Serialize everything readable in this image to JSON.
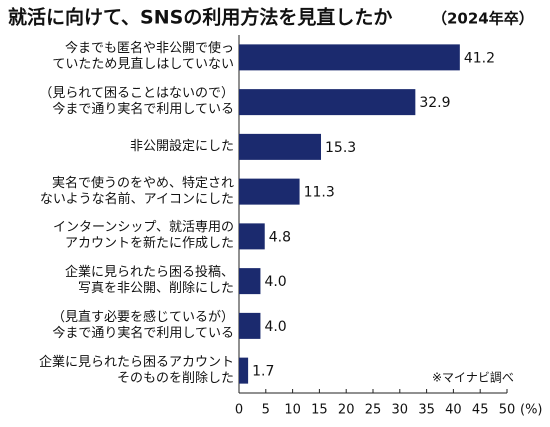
{
  "chart_data": {
    "type": "bar",
    "orientation": "horizontal",
    "title": "就活に向けて、SNSの利用方法を見直したか",
    "subtitle": "（2024年卒）",
    "categories": [
      "今までも匿名や非公開で使っ\nていたため見直しはしていない",
      "（見られて困ることはないので）\n今まで通り実名で利用している",
      "非公開設定にした",
      "実名で使うのをやめ、特定され\nないような名前、アイコンにした",
      "インターンシップ、就活専用の\nアカウントを新たに作成した",
      "企業に見られたら困る投稿、\n写真を非公開、削除にした",
      "（見直す必要を感じているが）\n今まで通り実名で利用している",
      "企業に見られたら困るアカウント\nそのものを削除した"
    ],
    "values": [
      41.2,
      32.9,
      15.3,
      11.3,
      4.8,
      4.0,
      4.0,
      1.7
    ],
    "value_labels": [
      "41.2",
      "32.9",
      "15.3",
      "11.3",
      "4.8",
      "4.0",
      "4.0",
      "1.7"
    ],
    "color": "#1b2a6e",
    "xlim": [
      0,
      50
    ],
    "xticks": [
      0,
      5,
      10,
      15,
      20,
      25,
      30,
      35,
      40,
      45,
      {
        "value": 50,
        "label": "50"
      }
    ],
    "x_label": "(%)",
    "source": "※マイナビ調べ"
  }
}
